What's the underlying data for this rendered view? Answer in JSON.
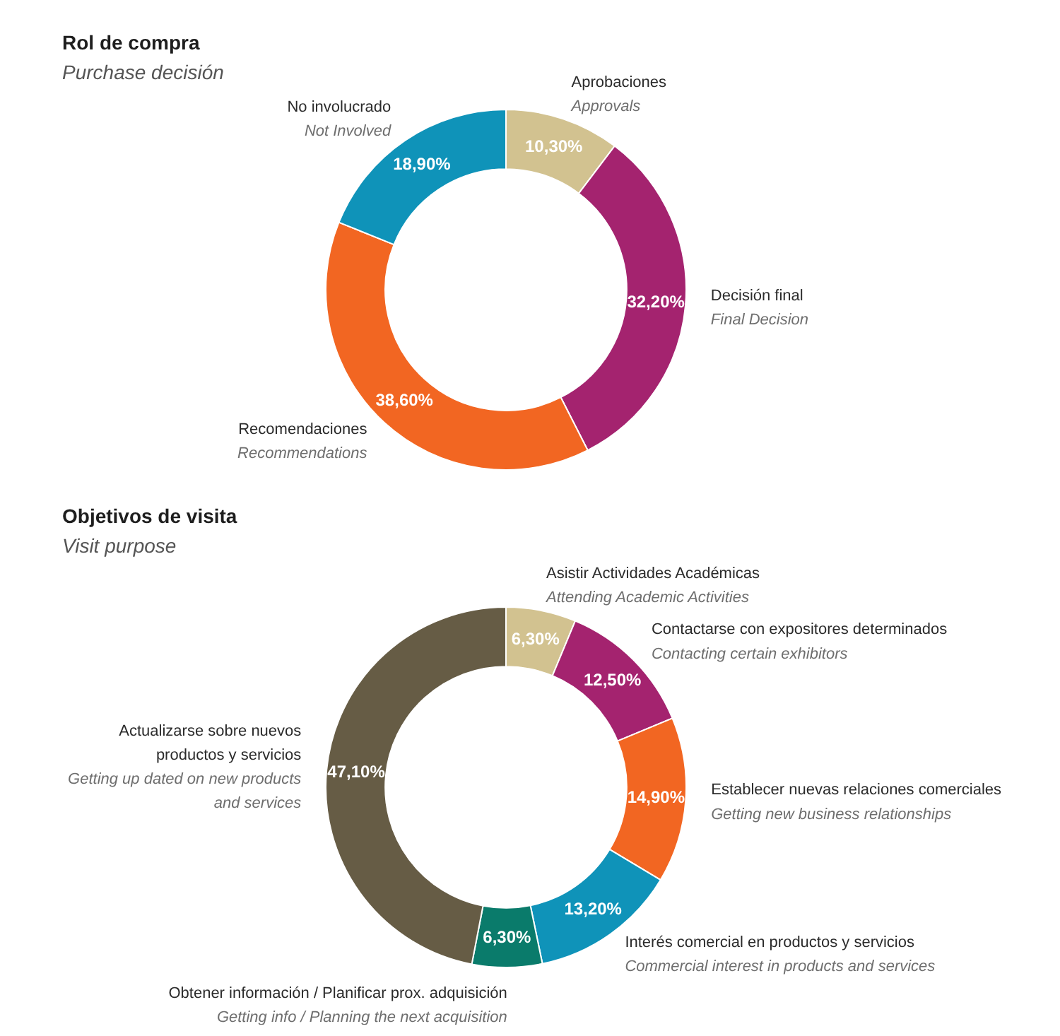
{
  "chart_data": [
    {
      "type": "donut",
      "title": "Rol de compra",
      "subtitle": "Purchase decisión",
      "categories": [
        "Aprobaciones\nApprovals",
        "Decisión final\nFinal Decision",
        "Recomendaciones\nRecommendations",
        "No involucrado\nNot Involved"
      ],
      "values": [
        10.3,
        32.2,
        38.6,
        18.9
      ],
      "colors": [
        "#d2c290",
        "#a4236f",
        "#f26622",
        "#0f93b9"
      ],
      "value_labels": [
        "10,30%",
        "32,20%",
        "38,60%",
        "18,90%"
      ]
    },
    {
      "type": "donut",
      "title": "Objetivos de visita",
      "subtitle": "Visit purpose",
      "categories": [
        "Asistir Actividades Académicas\nAttending Academic Activities",
        "Contactarse con expositores determinados\nContacting certain exhibitors",
        "Establecer nuevas relaciones comerciales\nGetting new business relationships",
        "Interés comercial en productos y servicios\nCommercial interest in products and services",
        "Obtener información / Planificar prox. adquisición\nGetting info / Planning the next acquisition",
        "Actualizarse sobre nuevos productos y servicios\nGetting up dated on new products and services"
      ],
      "values": [
        6.3,
        12.5,
        14.9,
        13.2,
        6.3,
        47.1
      ],
      "colors": [
        "#d2c290",
        "#a4236f",
        "#f26622",
        "#0f93b9",
        "#0a7b6b",
        "#665c45"
      ],
      "value_labels": [
        "6,30%",
        "12,50%",
        "14,90%",
        "13,20%",
        "6,30%",
        "47,10%"
      ]
    }
  ]
}
